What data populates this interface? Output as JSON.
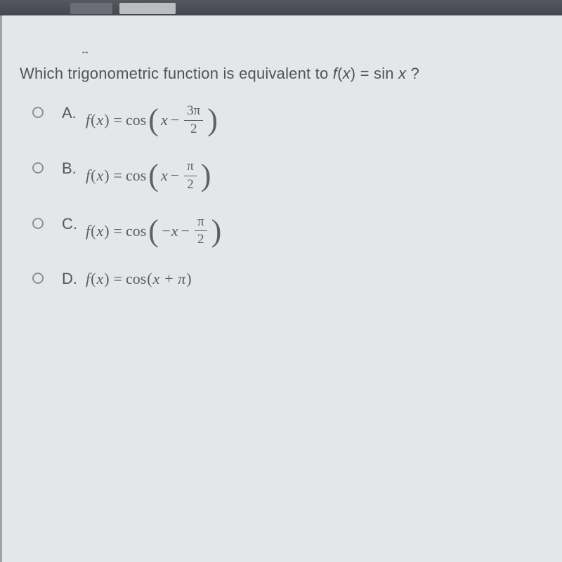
{
  "environment": {
    "background_color": "#3a3d42",
    "page_background": "#e5e6e8",
    "text_color": "#525459",
    "radio_border_color": "#8d8f94"
  },
  "cursor_glyph": "↔",
  "question": {
    "prefix": "Which trigonometric function is equivalent to ",
    "func_lhs_it": "f",
    "func_lhs_paren": "(",
    "func_lhs_var": "x",
    "func_lhs_paren_close": ")",
    "eq": " = ",
    "func_rhs": "sin ",
    "func_rhs_var": "x",
    "suffix": " ?"
  },
  "options": [
    {
      "letter": "A.",
      "type": "frac",
      "lead_it": "f",
      "lead_open": "(",
      "lead_var": "x",
      "lead_close": ")",
      "eq": "=",
      "fn": "cos",
      "inner_lead": "x",
      "inner_op": "−",
      "frac_num": "3π",
      "frac_den": "2"
    },
    {
      "letter": "B.",
      "type": "frac",
      "lead_it": "f",
      "lead_open": "(",
      "lead_var": "x",
      "lead_close": ")",
      "eq": "=",
      "fn": "cos",
      "inner_lead": "x",
      "inner_op": "−",
      "frac_num": "π",
      "frac_den": "2"
    },
    {
      "letter": "C.",
      "type": "frac",
      "lead_it": "f",
      "lead_open": "(",
      "lead_var": "x",
      "lead_close": ")",
      "eq": "=",
      "fn": "cos",
      "inner_lead": "−x",
      "inner_op": "−",
      "frac_num": "π",
      "frac_den": "2"
    },
    {
      "letter": "D.",
      "type": "flat",
      "lead_it": "f",
      "lead_open": "(",
      "lead_var": "x",
      "lead_close": ")",
      "eq": "=",
      "fn": "cos",
      "flat_inner": "x + π"
    }
  ]
}
